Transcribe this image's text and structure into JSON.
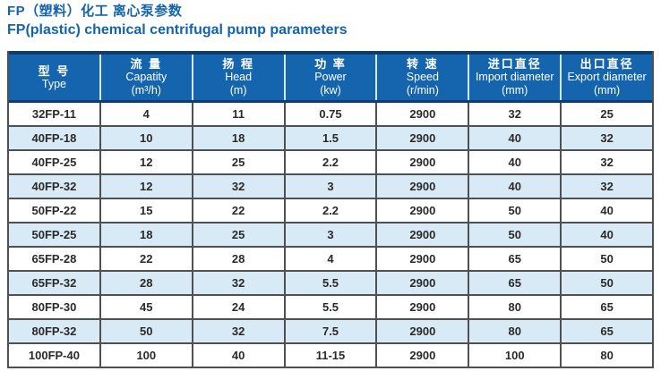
{
  "title": {
    "line1_zh": "FP（塑料）化工 离心泵参数",
    "line2_en": "FP(plastic) chemical centrifugal pump parameters"
  },
  "table": {
    "columns": [
      {
        "zh": "型 号",
        "en": "Type",
        "unit": ""
      },
      {
        "zh": "流 量",
        "en": "Capatity",
        "unit": "(m³/h)"
      },
      {
        "zh": "扬 程",
        "en": "Head",
        "unit": "(m)"
      },
      {
        "zh": "功 率",
        "en": "Power",
        "unit": "(kw)"
      },
      {
        "zh": "转 速",
        "en": "Speed",
        "unit": "(r/min)"
      },
      {
        "zh": "进口直径",
        "en": "Import diameter",
        "unit": "(mm)"
      },
      {
        "zh": "出口直径",
        "en": "Export diameter",
        "unit": "(mm)"
      }
    ],
    "rows": [
      [
        "32FP-11",
        "4",
        "11",
        "0.75",
        "2900",
        "32",
        "25"
      ],
      [
        "40FP-18",
        "10",
        "18",
        "1.5",
        "2900",
        "40",
        "32"
      ],
      [
        "40FP-25",
        "12",
        "25",
        "2.2",
        "2900",
        "40",
        "32"
      ],
      [
        "40FP-32",
        "12",
        "32",
        "3",
        "2900",
        "40",
        "32"
      ],
      [
        "50FP-22",
        "15",
        "22",
        "2.2",
        "2900",
        "50",
        "40"
      ],
      [
        "50FP-25",
        "18",
        "25",
        "3",
        "2900",
        "50",
        "40"
      ],
      [
        "65FP-28",
        "22",
        "28",
        "4",
        "2900",
        "65",
        "50"
      ],
      [
        "65FP-32",
        "28",
        "32",
        "5.5",
        "2900",
        "65",
        "50"
      ],
      [
        "80FP-30",
        "45",
        "24",
        "5.5",
        "2900",
        "80",
        "65"
      ],
      [
        "80FP-32",
        "50",
        "32",
        "7.5",
        "2900",
        "80",
        "65"
      ],
      [
        "100FP-40",
        "100",
        "40",
        "11-15",
        "2900",
        "100",
        "80"
      ]
    ]
  },
  "colors": {
    "title_blue": "#1464ac",
    "header_bg": "#1565ae",
    "header_border": "#0c3c72",
    "header_separator": "#d4e8f6",
    "row_alt_bg": "#d8eaf6",
    "body_border": "#4f5052",
    "body_text": "#2a2a2a"
  }
}
